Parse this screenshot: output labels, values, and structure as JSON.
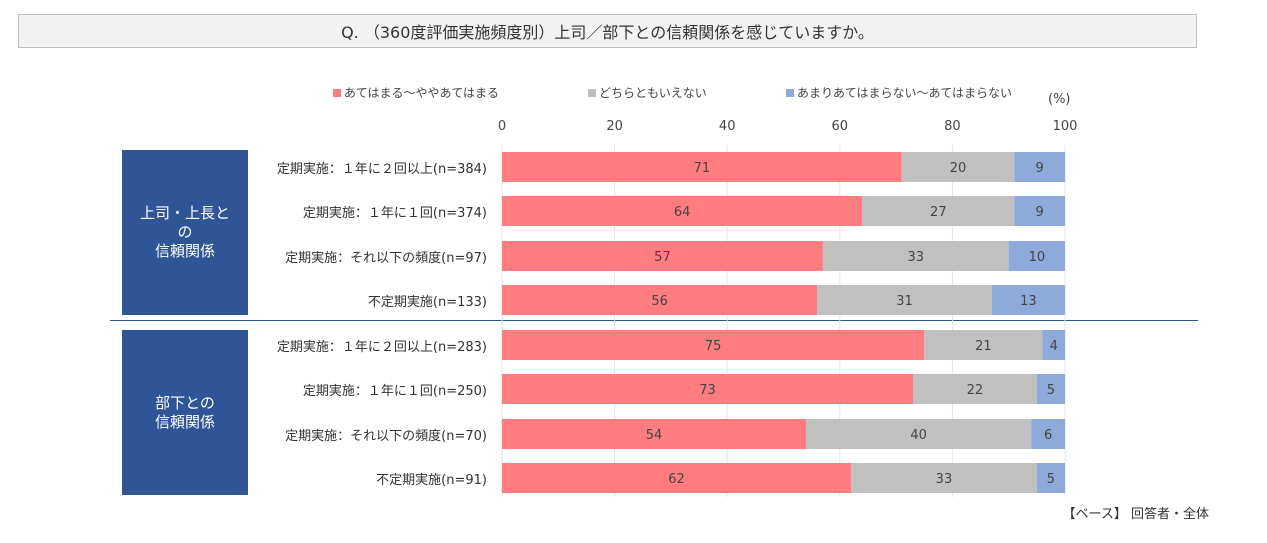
{
  "title": "Q. （360度評価実施頻度別）上司／部下との信頼関係を感じていますか。",
  "unit": "(%)",
  "footer": "【ベース】 回答者・全体",
  "colors": {
    "series1": "#ff7c80",
    "series2": "#c0c0c0",
    "series3": "#8eaadb",
    "group": "#2f5597"
  },
  "chart_data": {
    "type": "bar",
    "orientation": "horizontal",
    "stacked": true,
    "xlim": [
      0,
      100
    ],
    "xticks": [
      "0",
      "20",
      "40",
      "60",
      "80",
      "100"
    ],
    "legend": {
      "placement": "top"
    },
    "series": [
      {
        "name": "あてはまる～ややあてはまる"
      },
      {
        "name": "どちらともいえない"
      },
      {
        "name": "あまりあてはまらない～あてはまらない"
      }
    ],
    "groups": [
      {
        "label": "上司・上長と\nの\n信頼関係",
        "rows": [
          {
            "label": "定期実施：１年に２回以上(n=384)",
            "values": [
              71,
              20,
              9
            ]
          },
          {
            "label": "定期実施：１年に１回(n=374)",
            "values": [
              64,
              27,
              9
            ]
          },
          {
            "label": "定期実施：それ以下の頻度(n=97)",
            "values": [
              57,
              33,
              10
            ]
          },
          {
            "label": "不定期実施(n=133)",
            "values": [
              56,
              31,
              13
            ]
          }
        ]
      },
      {
        "label": "部下との\n信頼関係",
        "rows": [
          {
            "label": "定期実施：１年に２回以上(n=283)",
            "values": [
              75,
              21,
              4
            ]
          },
          {
            "label": "定期実施：１年に１回(n=250)",
            "values": [
              73,
              22,
              5
            ]
          },
          {
            "label": "定期実施：それ以下の頻度(n=70)",
            "values": [
              54,
              40,
              6
            ]
          },
          {
            "label": "不定期実施(n=91)",
            "values": [
              62,
              33,
              5
            ]
          }
        ]
      }
    ]
  }
}
